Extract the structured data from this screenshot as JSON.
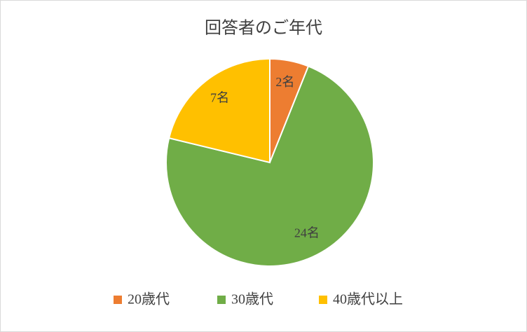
{
  "chart_data": {
    "type": "pie",
    "title": "回答者のご年代",
    "categories": [
      "20歳代",
      "30歳代",
      "40歳代以上"
    ],
    "values": [
      2,
      24,
      7
    ],
    "value_labels": [
      "2名",
      "24名",
      "7名"
    ],
    "colors": [
      "#ED7D31",
      "#70AD47",
      "#FFC000"
    ],
    "legend": "bottom"
  }
}
